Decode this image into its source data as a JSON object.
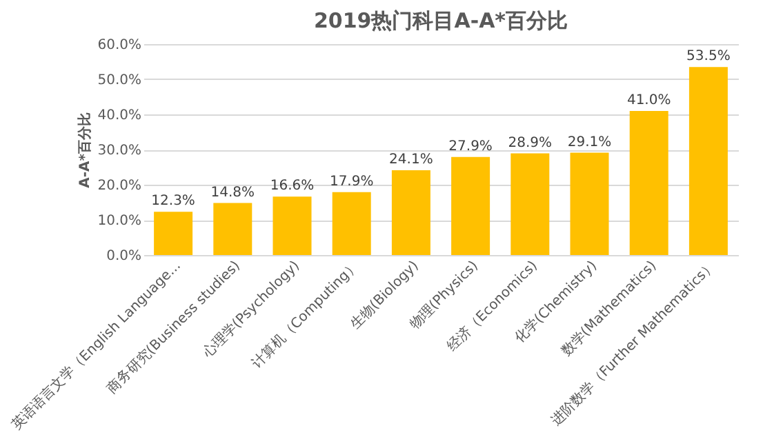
{
  "chart_data": {
    "type": "bar",
    "title": "2019热门科目A-A*百分比",
    "ylabel": "A-A*百分比",
    "categories": [
      "英语语言文学（English Language...",
      "商务研究(Business studies)",
      "心理学(Psychology)",
      "计算机（Computing）",
      "生物(Biology)",
      "物理(Physics)",
      "经济（Economics)",
      "化学(Chemistry)",
      "数学(Mathematics)",
      "进阶数学（Further Mathematics）"
    ],
    "values": [
      12.3,
      14.8,
      16.6,
      17.9,
      24.1,
      27.9,
      28.9,
      29.1,
      41.0,
      53.5
    ],
    "value_labels": [
      "12.3%",
      "14.8%",
      "16.6%",
      "17.9%",
      "24.1%",
      "27.9%",
      "28.9%",
      "29.1%",
      "41.0%",
      "53.5%"
    ],
    "color": "#ffc000",
    "ylim": [
      0,
      60
    ],
    "yticks": [
      {
        "value": 0,
        "label": "0.0%"
      },
      {
        "value": 10,
        "label": "10.0%"
      },
      {
        "value": 20,
        "label": "20.0%"
      },
      {
        "value": 30,
        "label": "30.0%"
      },
      {
        "value": 40,
        "label": "40.0%"
      },
      {
        "value": 50,
        "label": "50.0%"
      },
      {
        "value": 60,
        "label": "60.0%"
      }
    ],
    "grid": "y"
  }
}
